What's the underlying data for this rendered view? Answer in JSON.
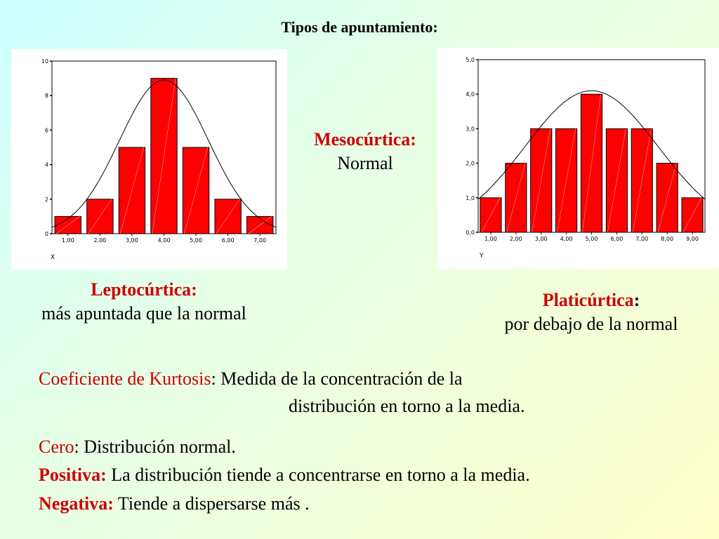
{
  "title": "Tipos de apuntamiento:",
  "captions": {
    "meso_label": "Mesocúrtica:",
    "meso_desc": "Normal",
    "lepto_label": "Leptocúrtica:",
    "lepto_desc": "más apuntada que la normal",
    "plati_label": "Platicúrtica",
    "plati_colon": ":",
    "plati_desc": "por debajo de la normal"
  },
  "kurtosis": {
    "term": "Coeficiente de Kurtosis",
    "definition_1": ": Medida de la concentración de la",
    "definition_2": "distribución en torno a la media."
  },
  "rules": [
    {
      "label": "Cero",
      "text": ": Distribución normal."
    },
    {
      "label": "Positiva:",
      "text": " La distribución tiende a concentrarse en torno a la media."
    },
    {
      "label": "Negativa:",
      "text": " Tiende a dispersarse más ."
    }
  ],
  "chart_data": [
    {
      "type": "bar",
      "title": "",
      "xlabel": "X",
      "ylabel": "",
      "categories": [
        "1,00",
        "2,00",
        "3,00",
        "4,00",
        "5,00",
        "6,00",
        "7,00"
      ],
      "values": [
        1,
        2,
        5,
        9,
        5,
        2,
        1
      ],
      "ylim": [
        0,
        10
      ],
      "yticks": [
        "0",
        "2",
        "4",
        "6",
        "8",
        "10"
      ],
      "overlay": "normal curve",
      "bar_color": "#ff0000",
      "grid": false
    },
    {
      "type": "bar",
      "title": "",
      "xlabel": "Y",
      "ylabel": "",
      "categories": [
        "1,00",
        "2,00",
        "3,00",
        "4,00",
        "5,00",
        "6,00",
        "7,00",
        "8,00",
        "9,00"
      ],
      "values": [
        1,
        2,
        3,
        3,
        4,
        3,
        3,
        2,
        1
      ],
      "ylim": [
        0,
        5
      ],
      "yticks": [
        "0,0",
        "1,0",
        "2,0",
        "3,0",
        "4,0",
        "5,0"
      ],
      "overlay": "normal curve",
      "bar_color": "#ff0000",
      "grid": false
    }
  ]
}
